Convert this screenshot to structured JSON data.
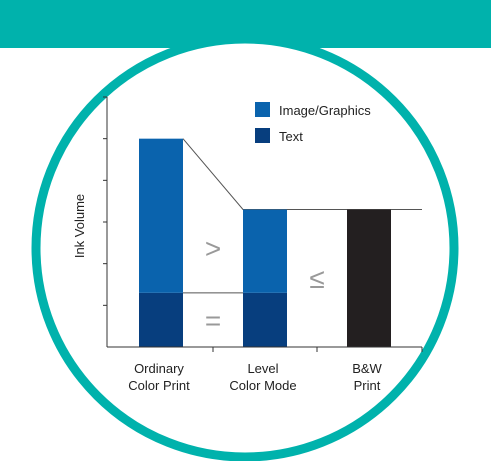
{
  "colors": {
    "header_band": "#00b2ac",
    "ring": "#00b2ac",
    "image_graphics": "#0a63ad",
    "text": "#073e7e",
    "bw": "#231f20"
  },
  "chart_data": {
    "type": "bar",
    "stacked": true,
    "title": "",
    "xlabel": "",
    "ylabel": "Ink Volume",
    "ylim": [
      0,
      6
    ],
    "grid": false,
    "y_tick_labels": false,
    "legend_position": "top-right",
    "categories": [
      [
        "Ordinary",
        "Color Print"
      ],
      [
        "Level",
        "Color Mode"
      ],
      [
        "B&W",
        "Print"
      ]
    ],
    "series": [
      {
        "name": "Text",
        "color": "#073e7e",
        "values": [
          1.3,
          1.3,
          0
        ]
      },
      {
        "name": "Image/Graphics",
        "color": "#0a63ad",
        "values": [
          3.7,
          2.0,
          0
        ]
      },
      {
        "name": "",
        "color": "#231f20",
        "values": [
          0,
          0,
          3.3
        ]
      }
    ],
    "comparisons": [
      {
        "symbol": ">",
        "between": [
          0,
          1
        ],
        "series": "Image/Graphics"
      },
      {
        "symbol": "=",
        "between": [
          0,
          1
        ],
        "series": "Text"
      },
      {
        "symbol": "≤",
        "between": [
          1,
          2
        ],
        "series": "total"
      }
    ]
  }
}
